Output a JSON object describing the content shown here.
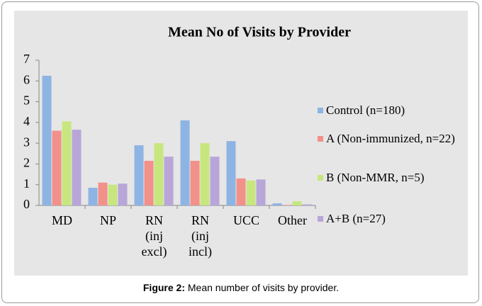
{
  "chart_data": {
    "type": "bar",
    "title": "Mean No of Visits by Provider",
    "categories": [
      "MD",
      "NP",
      "RN (inj excl)",
      "RN (inj incl)",
      "UCC",
      "Other"
    ],
    "series": [
      {
        "name": "Control (n=180)",
        "color": "#8db4e3",
        "values": [
          6.25,
          0.85,
          2.9,
          4.1,
          3.1,
          0.1
        ]
      },
      {
        "name": "A (Non-immunized, n=22)",
        "color": "#f2908a",
        "values": [
          3.6,
          1.1,
          2.15,
          2.15,
          1.3,
          0.02
        ]
      },
      {
        "name": "B (Non-MMR, n=5)",
        "color": "#c8e67e",
        "values": [
          4.05,
          1.0,
          3.0,
          3.0,
          1.2,
          0.2
        ]
      },
      {
        "name": "A+B (n=27)",
        "color": "#b8a6d8",
        "values": [
          3.65,
          1.05,
          2.35,
          2.35,
          1.25,
          0.05
        ]
      }
    ],
    "ylim": [
      0,
      7
    ],
    "yticks": [
      0,
      1,
      2,
      3,
      4,
      5,
      6,
      7
    ],
    "legend": "right"
  },
  "caption": {
    "label": "Figure 2:",
    "text": "Mean number of visits by provider."
  }
}
